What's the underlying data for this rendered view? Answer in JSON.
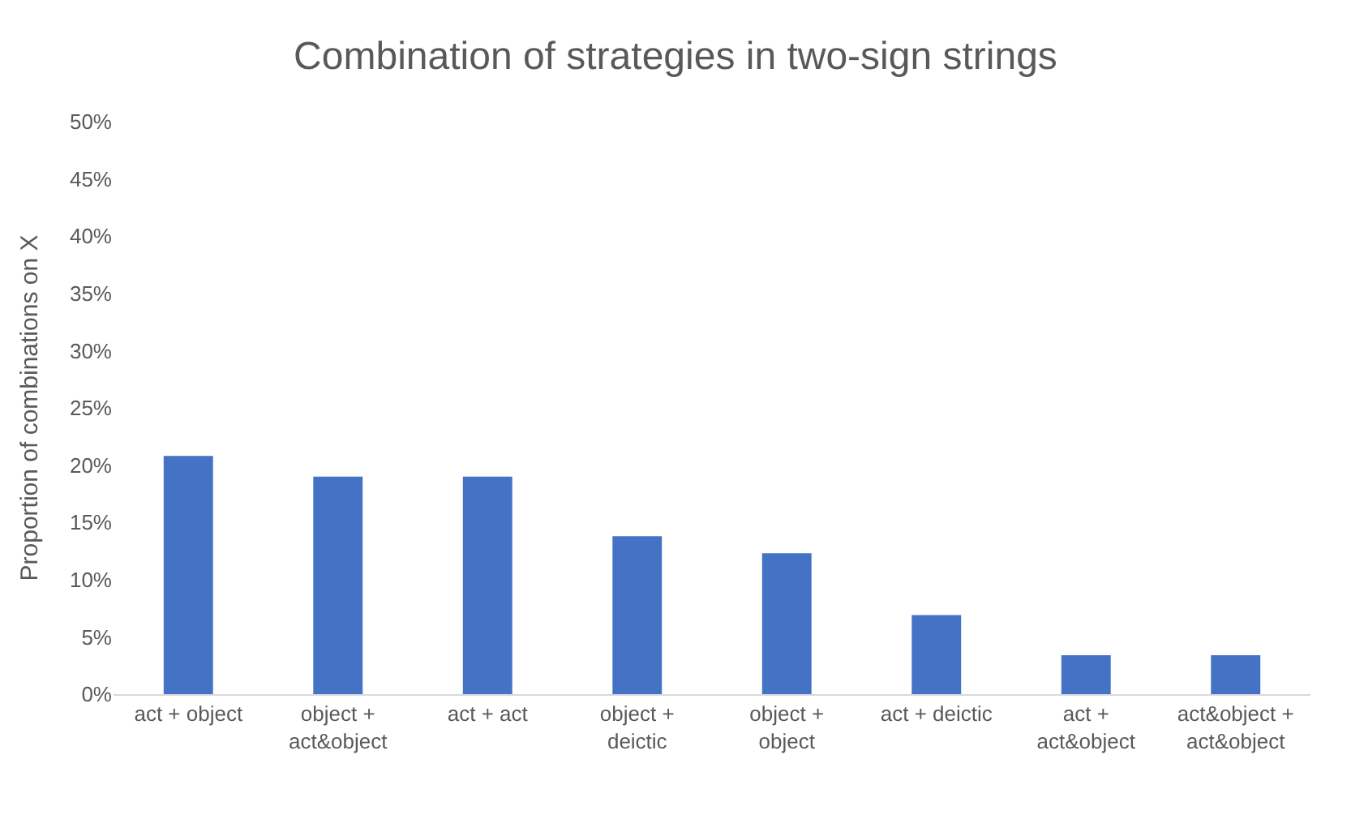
{
  "chart_data": {
    "type": "bar",
    "title": "Combination of strategies in two-sign strings",
    "ylabel": "Proportion of combinations on X",
    "categories": [
      "act + object",
      "object + act&object",
      "act + act",
      "object + deictic",
      "object + object",
      "act + deictic",
      "act + act&object",
      "act&object + act&object"
    ],
    "values": [
      20.8,
      19.0,
      19.0,
      13.8,
      12.3,
      6.9,
      3.4,
      3.4
    ],
    "color": "#4472c4",
    "ylim": [
      0,
      50
    ],
    "yticks": [
      {
        "value": 0,
        "label": "0%"
      },
      {
        "value": 5,
        "label": "5%"
      },
      {
        "value": 10,
        "label": "10%"
      },
      {
        "value": 15,
        "label": "15%"
      },
      {
        "value": 20,
        "label": "20%"
      },
      {
        "value": 25,
        "label": "25%"
      },
      {
        "value": 30,
        "label": "30%"
      },
      {
        "value": 35,
        "label": "35%"
      },
      {
        "value": 40,
        "label": "40%"
      },
      {
        "value": 45,
        "label": "45%"
      },
      {
        "value": 50,
        "label": "50%"
      }
    ],
    "grid": false,
    "legend": false
  }
}
